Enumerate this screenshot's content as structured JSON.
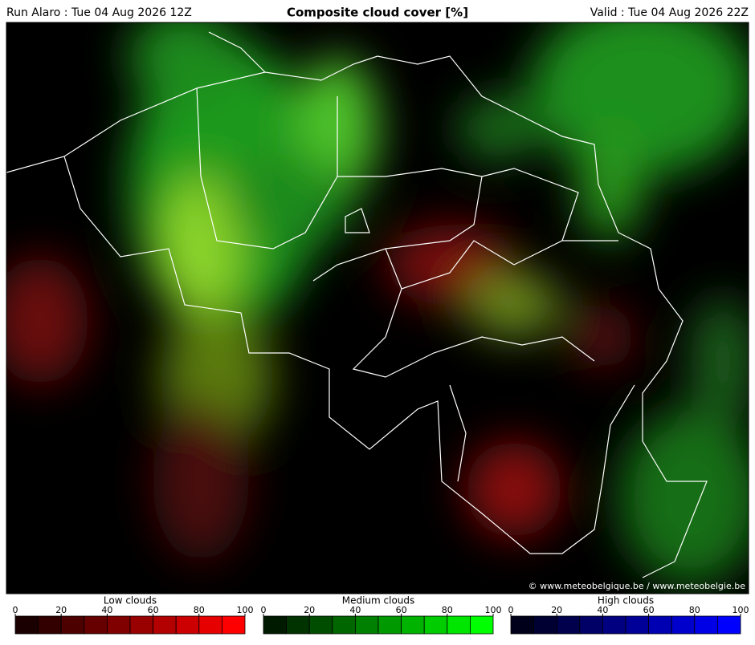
{
  "header": {
    "run": "Run Alaro : Tue 04 Aug 2026 12Z",
    "title": "Composite cloud cover [%]",
    "valid": "Valid : Tue 04 Aug 2026 22Z"
  },
  "credit": "© www.meteobelgique.be / www.meteobelgie.be",
  "legends": [
    {
      "title": "Low clouds",
      "ticks": [
        0,
        20,
        40,
        60,
        80,
        100
      ],
      "colors": [
        "#1a0000",
        "#330000",
        "#4d0000",
        "#660000",
        "#800000",
        "#990000",
        "#b30000",
        "#cc0000",
        "#e60000",
        "#ff0000"
      ]
    },
    {
      "title": "Medium clouds",
      "ticks": [
        0,
        20,
        40,
        60,
        80,
        100
      ],
      "colors": [
        "#001a00",
        "#003300",
        "#004d00",
        "#006600",
        "#008000",
        "#009900",
        "#00b300",
        "#00cc00",
        "#00e600",
        "#00ff00"
      ]
    },
    {
      "title": "High clouds",
      "ticks": [
        0,
        20,
        40,
        60,
        80,
        100
      ],
      "colors": [
        "#00001a",
        "#000033",
        "#00004d",
        "#000066",
        "#000080",
        "#000099",
        "#0000b3",
        "#0000cc",
        "#0000e6",
        "#0000ff"
      ]
    }
  ]
}
